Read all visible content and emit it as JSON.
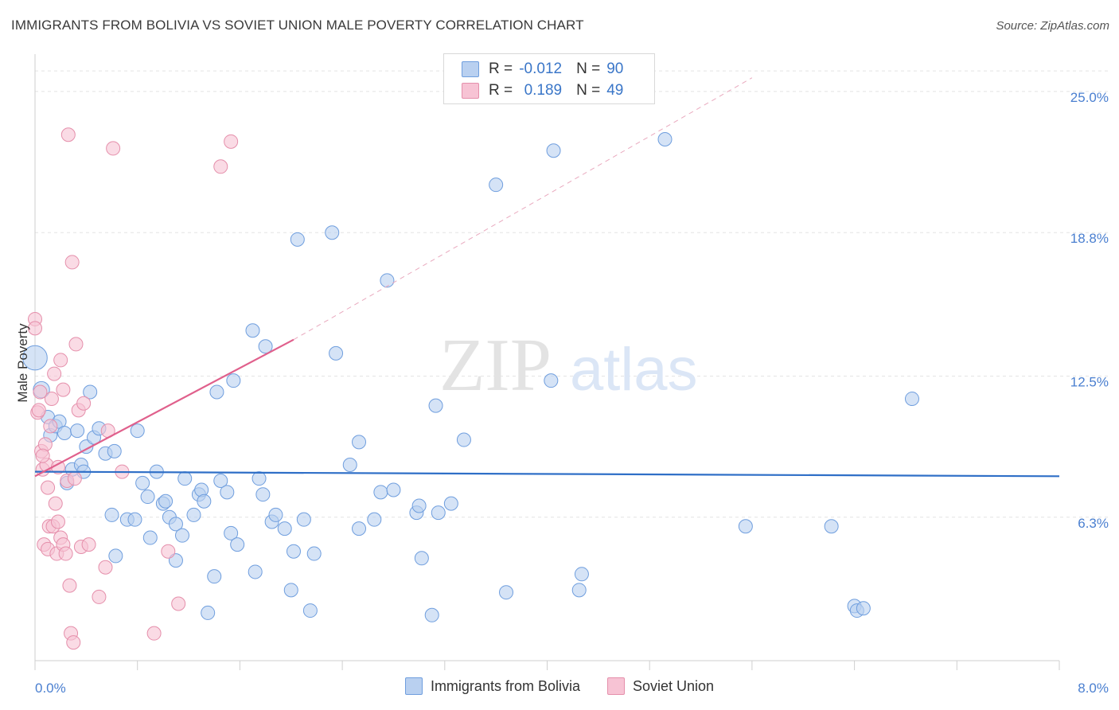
{
  "header": {
    "title": "IMMIGRANTS FROM BOLIVIA VS SOVIET UNION MALE POVERTY CORRELATION CHART",
    "source": "Source: ZipAtlas.com"
  },
  "legend": {
    "series1": {
      "r_label": "R =",
      "r_value": "-0.012",
      "n_label": "N =",
      "n_value": "90"
    },
    "series2": {
      "r_label": "R =",
      "r_value": "0.189",
      "n_label": "N =",
      "n_value": "49"
    }
  },
  "bottom_legend": {
    "series1": "Immigrants from Bolivia",
    "series2": "Soviet Union"
  },
  "watermark": {
    "part1": "ZIP",
    "part2": "atlas"
  },
  "colors": {
    "blue_fill": "#b9d0f0",
    "blue_stroke": "#6f9ede",
    "blue_line": "#2f6fc7",
    "pink_fill": "#f7c3d4",
    "pink_stroke": "#e58fab",
    "pink_line": "#e0608c",
    "axis_label": "#4a7fd0",
    "grid": "#e4e4e4"
  },
  "chart_data": {
    "type": "scatter",
    "title": "IMMIGRANTS FROM BOLIVIA VS SOVIET UNION MALE POVERTY CORRELATION CHART",
    "xlabel": "",
    "ylabel": "Male Poverty",
    "xlim": [
      0,
      8
    ],
    "ylim": [
      0,
      26.5
    ],
    "x_tick_labels": {
      "left": "0.0%",
      "right": "8.0%"
    },
    "y_ticks": [
      {
        "value": 6.3,
        "label": "6.3%"
      },
      {
        "value": 12.5,
        "label": "12.5%"
      },
      {
        "value": 18.8,
        "label": "18.8%"
      },
      {
        "value": 25.0,
        "label": "25.0%"
      }
    ],
    "series": [
      {
        "name": "Immigrants from Bolivia",
        "trend": {
          "x": [
            0,
            8
          ],
          "y": [
            8.3,
            8.1
          ]
        },
        "points": [
          [
            0.0,
            13.3,
            1.8
          ],
          [
            0.05,
            11.9,
            1.2
          ],
          [
            0.1,
            10.7,
            1
          ],
          [
            0.12,
            9.9,
            1
          ],
          [
            0.16,
            10.3,
            1
          ],
          [
            0.19,
            10.5,
            1
          ],
          [
            0.23,
            10.0,
            1
          ],
          [
            0.25,
            7.8,
            1
          ],
          [
            0.29,
            8.4,
            1
          ],
          [
            0.33,
            10.1,
            1
          ],
          [
            0.36,
            8.6,
            1
          ],
          [
            0.38,
            8.3,
            1
          ],
          [
            0.4,
            9.4,
            1
          ],
          [
            0.43,
            11.8,
            1
          ],
          [
            0.46,
            9.8,
            1
          ],
          [
            0.5,
            10.2,
            1
          ],
          [
            0.55,
            9.1,
            1
          ],
          [
            0.62,
            9.2,
            1
          ],
          [
            0.6,
            6.4,
            1
          ],
          [
            0.63,
            4.6,
            1
          ],
          [
            0.72,
            6.2,
            1
          ],
          [
            0.78,
            6.2,
            1
          ],
          [
            0.8,
            10.1,
            1
          ],
          [
            0.84,
            7.8,
            1
          ],
          [
            0.88,
            7.2,
            1
          ],
          [
            0.9,
            5.4,
            1
          ],
          [
            0.95,
            8.3,
            1
          ],
          [
            1.0,
            6.9,
            1
          ],
          [
            1.02,
            7.0,
            1
          ],
          [
            1.05,
            6.3,
            1
          ],
          [
            1.1,
            6.0,
            1
          ],
          [
            1.1,
            4.4,
            1
          ],
          [
            1.15,
            5.5,
            1
          ],
          [
            1.17,
            8.0,
            1
          ],
          [
            1.24,
            6.4,
            1
          ],
          [
            1.28,
            7.3,
            1
          ],
          [
            1.3,
            7.5,
            1
          ],
          [
            1.32,
            7.0,
            1
          ],
          [
            1.35,
            2.1,
            1
          ],
          [
            1.4,
            3.7,
            1
          ],
          [
            1.42,
            11.8,
            1
          ],
          [
            1.45,
            7.9,
            1
          ],
          [
            1.5,
            7.4,
            1
          ],
          [
            1.53,
            5.6,
            1
          ],
          [
            1.55,
            12.3,
            1
          ],
          [
            1.58,
            5.1,
            1
          ],
          [
            1.7,
            14.5,
            1
          ],
          [
            1.72,
            3.9,
            1
          ],
          [
            1.75,
            8.0,
            1
          ],
          [
            1.78,
            7.3,
            1
          ],
          [
            1.8,
            13.8,
            1
          ],
          [
            1.85,
            6.1,
            1
          ],
          [
            1.88,
            6.4,
            1
          ],
          [
            1.95,
            5.8,
            1
          ],
          [
            2.0,
            3.1,
            1
          ],
          [
            2.02,
            4.8,
            1
          ],
          [
            2.05,
            18.5,
            1
          ],
          [
            2.1,
            6.2,
            1
          ],
          [
            2.15,
            2.2,
            1
          ],
          [
            2.18,
            4.7,
            1
          ],
          [
            2.32,
            18.8,
            1
          ],
          [
            2.35,
            13.5,
            1
          ],
          [
            2.46,
            8.6,
            1
          ],
          [
            2.53,
            5.8,
            1
          ],
          [
            2.53,
            9.6,
            1
          ],
          [
            2.65,
            6.2,
            1
          ],
          [
            2.7,
            7.4,
            1
          ],
          [
            2.75,
            16.7,
            1
          ],
          [
            2.8,
            7.5,
            1
          ],
          [
            2.98,
            6.5,
            1
          ],
          [
            3.0,
            6.8,
            1
          ],
          [
            3.02,
            4.5,
            1
          ],
          [
            3.1,
            2.0,
            1
          ],
          [
            3.13,
            11.2,
            1
          ],
          [
            3.15,
            6.5,
            1
          ],
          [
            3.25,
            6.9,
            1
          ],
          [
            3.35,
            9.7,
            1
          ],
          [
            3.6,
            20.9,
            1
          ],
          [
            3.68,
            3.0,
            1
          ],
          [
            4.03,
            12.3,
            1
          ],
          [
            4.05,
            22.4,
            1
          ],
          [
            4.25,
            3.1,
            1
          ],
          [
            4.27,
            3.8,
            1
          ],
          [
            4.92,
            22.9,
            1
          ],
          [
            5.55,
            5.9,
            1
          ],
          [
            6.22,
            5.9,
            1
          ],
          [
            6.4,
            2.4,
            1
          ],
          [
            6.42,
            2.2,
            1
          ],
          [
            6.85,
            11.5,
            1
          ],
          [
            6.47,
            2.3,
            1
          ]
        ]
      },
      {
        "name": "Soviet Union",
        "trend": {
          "x": [
            0,
            2.02
          ],
          "y": [
            8.1,
            14.1
          ]
        },
        "trend_dashed": {
          "x": [
            2.02,
            5.6
          ],
          "y": [
            14.1,
            25.6
          ]
        },
        "points": [
          [
            0.0,
            15.0,
            1
          ],
          [
            0.0,
            14.6,
            1
          ],
          [
            0.02,
            10.9,
            1
          ],
          [
            0.04,
            11.8,
            1
          ],
          [
            0.05,
            9.2,
            1
          ],
          [
            0.06,
            8.4,
            1
          ],
          [
            0.07,
            5.1,
            1
          ],
          [
            0.08,
            9.5,
            1
          ],
          [
            0.09,
            8.6,
            1
          ],
          [
            0.1,
            7.6,
            1
          ],
          [
            0.1,
            4.9,
            1
          ],
          [
            0.11,
            5.9,
            1
          ],
          [
            0.12,
            10.3,
            1
          ],
          [
            0.13,
            11.5,
            1
          ],
          [
            0.14,
            5.9,
            1
          ],
          [
            0.15,
            12.6,
            1
          ],
          [
            0.16,
            6.9,
            1
          ],
          [
            0.17,
            4.7,
            1
          ],
          [
            0.18,
            8.5,
            1
          ],
          [
            0.18,
            6.1,
            1
          ],
          [
            0.2,
            13.2,
            1
          ],
          [
            0.2,
            5.4,
            1
          ],
          [
            0.22,
            5.1,
            1
          ],
          [
            0.24,
            4.7,
            1
          ],
          [
            0.25,
            7.9,
            1
          ],
          [
            0.26,
            23.1,
            1
          ],
          [
            0.27,
            3.3,
            1
          ],
          [
            0.28,
            1.2,
            1
          ],
          [
            0.29,
            17.5,
            1
          ],
          [
            0.3,
            0.8,
            1
          ],
          [
            0.31,
            8.0,
            1
          ],
          [
            0.32,
            13.9,
            1
          ],
          [
            0.34,
            11.0,
            1
          ],
          [
            0.36,
            5.0,
            1
          ],
          [
            0.38,
            11.3,
            1
          ],
          [
            0.42,
            5.1,
            1
          ],
          [
            0.5,
            2.8,
            1
          ],
          [
            0.55,
            4.1,
            1
          ],
          [
            0.57,
            10.1,
            1
          ],
          [
            0.61,
            22.5,
            1
          ],
          [
            0.68,
            8.3,
            1
          ],
          [
            0.93,
            1.2,
            1
          ],
          [
            1.04,
            4.8,
            1
          ],
          [
            1.12,
            2.5,
            1
          ],
          [
            1.45,
            21.7,
            1
          ],
          [
            1.53,
            22.8,
            1
          ],
          [
            0.03,
            11.0,
            1
          ],
          [
            0.06,
            9.0,
            1
          ],
          [
            0.22,
            11.9,
            1
          ]
        ]
      }
    ]
  }
}
